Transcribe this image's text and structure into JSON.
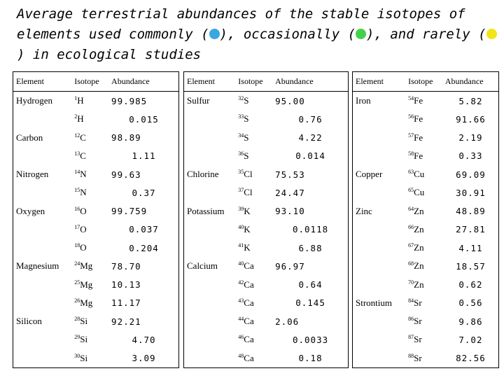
{
  "title": {
    "part1": "Average terrestrial abundances of the stable isotopes of elements used commonly (",
    "part2": "), occasionally (",
    "part3": "), and rarely (",
    "part4": ") in ecological studies"
  },
  "legend_colors": {
    "commonly": "#39a7e0",
    "occasionally": "#44d14a",
    "rarely": "#f2e416"
  },
  "headers": {
    "element": "Element",
    "isotope": "Isotope",
    "abundance": "Abundance"
  },
  "tables": [
    {
      "rows": [
        {
          "element": "Hydrogen",
          "mass": "1",
          "symbol": "H",
          "abundance": "99.985",
          "align": "l"
        },
        {
          "element": "",
          "mass": "2",
          "symbol": "H",
          "abundance": "0.015",
          "align": "c"
        },
        {
          "element": "Carbon",
          "mass": "12",
          "symbol": "C",
          "abundance": "98.89",
          "align": "l"
        },
        {
          "element": "",
          "mass": "13",
          "symbol": "C",
          "abundance": "1.11",
          "align": "c"
        },
        {
          "element": "Nitrogen",
          "mass": "14",
          "symbol": "N",
          "abundance": "99.63",
          "align": "l"
        },
        {
          "element": "",
          "mass": "15",
          "symbol": "N",
          "abundance": "0.37",
          "align": "c"
        },
        {
          "element": "Oxygen",
          "mass": "16",
          "symbol": "O",
          "abundance": "99.759",
          "align": "l"
        },
        {
          "element": "",
          "mass": "17",
          "symbol": "O",
          "abundance": "0.037",
          "align": "c"
        },
        {
          "element": "",
          "mass": "18",
          "symbol": "O",
          "abundance": "0.204",
          "align": "c"
        },
        {
          "element": "Magnesium",
          "mass": "24",
          "symbol": "Mg",
          "abundance": "78.70",
          "align": "l"
        },
        {
          "element": "",
          "mass": "25",
          "symbol": "Mg",
          "abundance": "10.13",
          "align": "l"
        },
        {
          "element": "",
          "mass": "26",
          "symbol": "Mg",
          "abundance": "11.17",
          "align": "l"
        },
        {
          "element": "Silicon",
          "mass": "28",
          "symbol": "Si",
          "abundance": "92.21",
          "align": "l"
        },
        {
          "element": "",
          "mass": "29",
          "symbol": "Si",
          "abundance": "4.70",
          "align": "c"
        },
        {
          "element": "",
          "mass": "30",
          "symbol": "Si",
          "abundance": "3.09",
          "align": "c"
        }
      ]
    },
    {
      "rows": [
        {
          "element": "Sulfur",
          "mass": "32",
          "symbol": "S",
          "abundance": "95.00",
          "align": "l"
        },
        {
          "element": "",
          "mass": "33",
          "symbol": "S",
          "abundance": "0.76",
          "align": "c"
        },
        {
          "element": "",
          "mass": "34",
          "symbol": "S",
          "abundance": "4.22",
          "align": "c"
        },
        {
          "element": "",
          "mass": "36",
          "symbol": "S",
          "abundance": "0.014",
          "align": "c"
        },
        {
          "element": "Chlorine",
          "mass": "35",
          "symbol": "Cl",
          "abundance": "75.53",
          "align": "l"
        },
        {
          "element": "",
          "mass": "37",
          "symbol": "Cl",
          "abundance": "24.47",
          "align": "l"
        },
        {
          "element": "Potassium",
          "mass": "39",
          "symbol": "K",
          "abundance": "93.10",
          "align": "l"
        },
        {
          "element": "",
          "mass": "40",
          "symbol": "K",
          "abundance": "0.0118",
          "align": "c"
        },
        {
          "element": "",
          "mass": "41",
          "symbol": "K",
          "abundance": "6.88",
          "align": "c"
        },
        {
          "element": "Calcium",
          "mass": "40",
          "symbol": "Ca",
          "abundance": "96.97",
          "align": "l"
        },
        {
          "element": "",
          "mass": "42",
          "symbol": "Ca",
          "abundance": "0.64",
          "align": "c"
        },
        {
          "element": "",
          "mass": "43",
          "symbol": "Ca",
          "abundance": "0.145",
          "align": "c"
        },
        {
          "element": "",
          "mass": "44",
          "symbol": "Ca",
          "abundance": "2.06",
          "align": "l"
        },
        {
          "element": "",
          "mass": "46",
          "symbol": "Ca",
          "abundance": "0.0033",
          "align": "c"
        },
        {
          "element": "",
          "mass": "48",
          "symbol": "Ca",
          "abundance": "0.18",
          "align": "c"
        }
      ]
    },
    {
      "rows": [
        {
          "element": "Iron",
          "mass": "54",
          "symbol": "Fe",
          "abundance": "5.82",
          "align": "c"
        },
        {
          "element": "",
          "mass": "56",
          "symbol": "Fe",
          "abundance": "91.66",
          "align": "c"
        },
        {
          "element": "",
          "mass": "57",
          "symbol": "Fe",
          "abundance": "2.19",
          "align": "c"
        },
        {
          "element": "",
          "mass": "58",
          "symbol": "Fe",
          "abundance": "0.33",
          "align": "c"
        },
        {
          "element": "Copper",
          "mass": "63",
          "symbol": "Cu",
          "abundance": "69.09",
          "align": "c"
        },
        {
          "element": "",
          "mass": "65",
          "symbol": "Cu",
          "abundance": "30.91",
          "align": "c"
        },
        {
          "element": "Zinc",
          "mass": "64",
          "symbol": "Zn",
          "abundance": "48.89",
          "align": "c"
        },
        {
          "element": "",
          "mass": "66",
          "symbol": "Zn",
          "abundance": "27.81",
          "align": "c"
        },
        {
          "element": "",
          "mass": "67",
          "symbol": "Zn",
          "abundance": "4.11",
          "align": "c"
        },
        {
          "element": "",
          "mass": "68",
          "symbol": "Zn",
          "abundance": "18.57",
          "align": "c"
        },
        {
          "element": "",
          "mass": "70",
          "symbol": "Zn",
          "abundance": "0.62",
          "align": "c"
        },
        {
          "element": "Strontium",
          "mass": "84",
          "symbol": "Sr",
          "abundance": "0.56",
          "align": "c"
        },
        {
          "element": "",
          "mass": "86",
          "symbol": "Sr",
          "abundance": "9.86",
          "align": "c"
        },
        {
          "element": "",
          "mass": "87",
          "symbol": "Sr",
          "abundance": "7.02",
          "align": "c"
        },
        {
          "element": "",
          "mass": "88",
          "symbol": "Sr",
          "abundance": "82.56",
          "align": "c"
        }
      ]
    }
  ]
}
